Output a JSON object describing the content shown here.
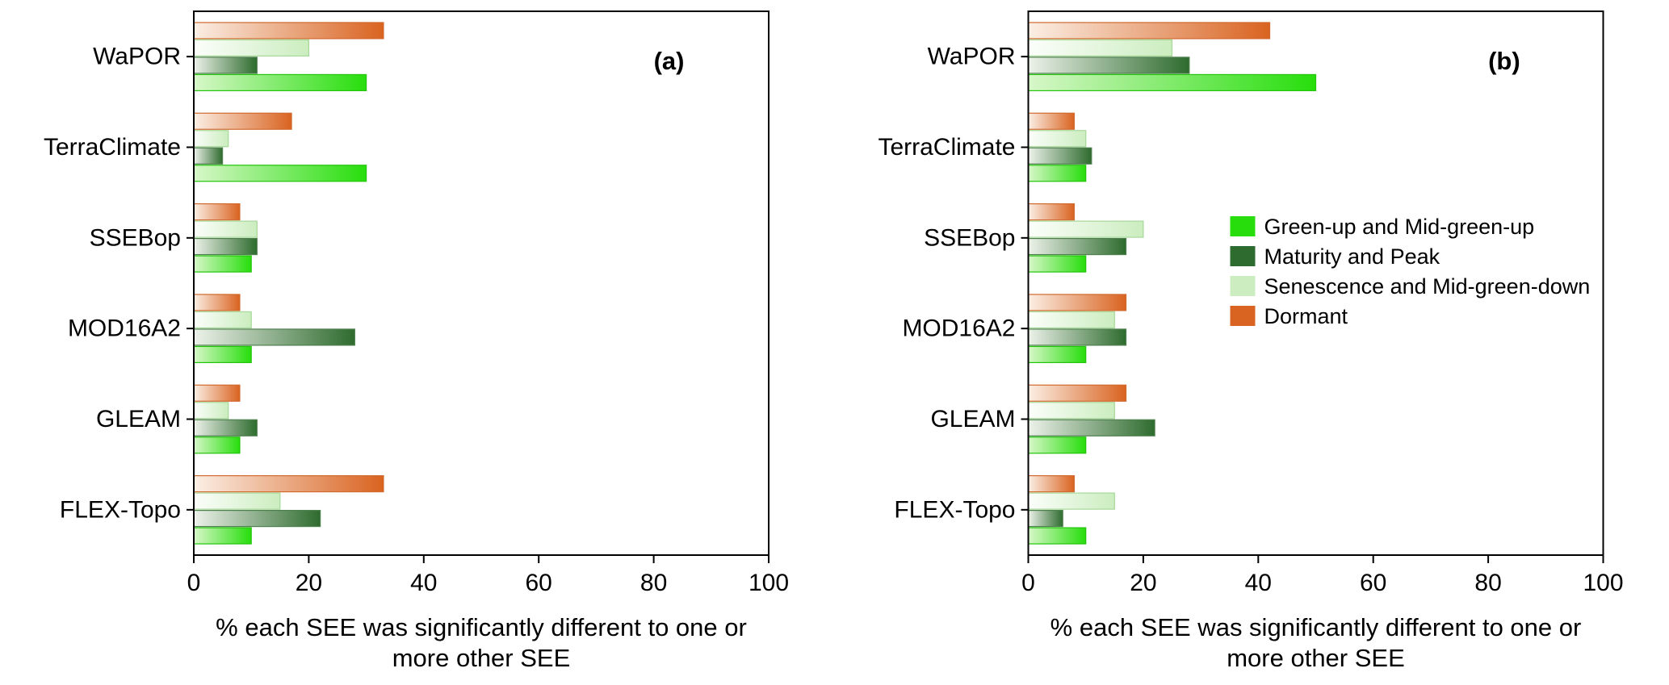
{
  "figure": {
    "xlabel_lines": [
      "% each SEE was significantly different to one or",
      "more other SEE"
    ],
    "background": "#ffffff",
    "axis_color": "#000000"
  },
  "legend": {
    "position": "inside-panel-b",
    "items": [
      {
        "label": "Green-up and Mid-green-up",
        "color": "#27DE0C"
      },
      {
        "label": "Maturity and Peak",
        "color": "#2E6B2E"
      },
      {
        "label": "Senescence and Mid-green-down",
        "color": "#CBEDBF"
      },
      {
        "label": "Dormant",
        "color": "#D96320"
      }
    ]
  },
  "chart_data": [
    {
      "type": "bar",
      "orientation": "horizontal",
      "panel_label": "(a)",
      "categories": [
        "WaPOR",
        "TerraClimate",
        "SSEBop",
        "MOD16A2",
        "GLEAM",
        "FLEX-Topo"
      ],
      "series": [
        {
          "name": "Dormant",
          "color": "#D96320",
          "stroke": "#D06A2E",
          "gradient_start": "#FBEFE5",
          "values": [
            33,
            17,
            8,
            8,
            8,
            33
          ]
        },
        {
          "name": "Senescence and Mid-green-down",
          "color": "#CBEDBF",
          "stroke": "#A6D898",
          "gradient_start": "#FCFEFB",
          "values": [
            20,
            6,
            11,
            10,
            6,
            15
          ]
        },
        {
          "name": "Maturity and Peak",
          "color": "#2E6B2E",
          "stroke": "#4E7F4E",
          "gradient_start": "#EDF2EA",
          "values": [
            11,
            5,
            11,
            28,
            11,
            22
          ]
        },
        {
          "name": "Green-up and Mid-green-up",
          "color": "#27DE0C",
          "stroke": "#23C40B",
          "gradient_start": "#D8F7C9",
          "values": [
            30,
            30,
            10,
            10,
            8,
            10
          ]
        }
      ],
      "xlim": [
        0,
        100
      ],
      "xticks": [
        0,
        20,
        40,
        60,
        80,
        100
      ],
      "xlabel": "% each SEE was significantly different to one or more other SEE",
      "grid": false,
      "legend_visible": false
    },
    {
      "type": "bar",
      "orientation": "horizontal",
      "panel_label": "(b)",
      "categories": [
        "WaPOR",
        "TerraClimate",
        "SSEBop",
        "MOD16A2",
        "GLEAM",
        "FLEX-Topo"
      ],
      "series": [
        {
          "name": "Dormant",
          "color": "#D96320",
          "stroke": "#D06A2E",
          "gradient_start": "#FBEFE5",
          "values": [
            42,
            8,
            8,
            17,
            17,
            8
          ]
        },
        {
          "name": "Senescence and Mid-green-down",
          "color": "#CBEDBF",
          "stroke": "#A6D898",
          "gradient_start": "#FCFEFB",
          "values": [
            25,
            10,
            20,
            15,
            15,
            15
          ]
        },
        {
          "name": "Maturity and Peak",
          "color": "#2E6B2E",
          "stroke": "#4E7F4E",
          "gradient_start": "#EDF2EA",
          "values": [
            28,
            11,
            17,
            17,
            22,
            6
          ]
        },
        {
          "name": "Green-up and Mid-green-up",
          "color": "#27DE0C",
          "stroke": "#23C40B",
          "gradient_start": "#D8F7C9",
          "values": [
            50,
            10,
            10,
            10,
            10,
            10
          ]
        }
      ],
      "xlim": [
        0,
        100
      ],
      "xticks": [
        0,
        20,
        40,
        60,
        80,
        100
      ],
      "xlabel": "% each SEE was significantly different to one or more other SEE",
      "grid": false,
      "legend_visible": true
    }
  ]
}
